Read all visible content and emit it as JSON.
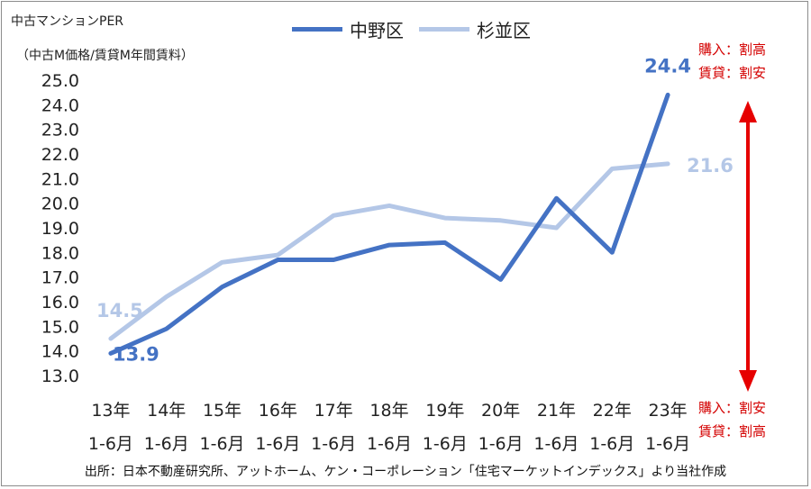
{
  "chart_data": {
    "type": "line",
    "title": "中古マンションPER",
    "subtitle": "（中古M価格/賃貸M年間賃料）",
    "categories": [
      "13年 1-6月",
      "14年 1-6月",
      "15年 1-6月",
      "16年 1-6月",
      "17年 1-6月",
      "18年 1-6月",
      "19年 1-6月",
      "20年 1-6月",
      "21年 1-6月",
      "22年 1-6月",
      "23年 1-6月"
    ],
    "category_lines": [
      [
        "13年",
        "1-6月"
      ],
      [
        "14年",
        "1-6月"
      ],
      [
        "15年",
        "1-6月"
      ],
      [
        "16年",
        "1-6月"
      ],
      [
        "17年",
        "1-6月"
      ],
      [
        "18年",
        "1-6月"
      ],
      [
        "19年",
        "1-6月"
      ],
      [
        "20年",
        "1-6月"
      ],
      [
        "21年",
        "1-6月"
      ],
      [
        "22年",
        "1-6月"
      ],
      [
        "23年",
        "1-6月"
      ]
    ],
    "series": [
      {
        "name": "中野区",
        "color": "#4472c4",
        "values": [
          13.9,
          14.9,
          16.6,
          17.7,
          17.7,
          18.3,
          18.4,
          16.9,
          20.2,
          18.0,
          24.4
        ]
      },
      {
        "name": "杉並区",
        "color": "#b4c7e7",
        "values": [
          14.5,
          16.2,
          17.6,
          17.9,
          19.5,
          19.9,
          19.4,
          19.3,
          19.0,
          21.4,
          21.6
        ]
      }
    ],
    "labels": [
      {
        "series": 0,
        "index": 0,
        "text": "13.9"
      },
      {
        "series": 0,
        "index": 10,
        "text": "24.4"
      },
      {
        "series": 1,
        "index": 0,
        "text": "14.5"
      },
      {
        "series": 1,
        "index": 10,
        "text": "21.6"
      }
    ],
    "ylim": [
      13.0,
      25.0
    ],
    "yticks": [
      "13.0",
      "14.0",
      "15.0",
      "16.0",
      "17.0",
      "18.0",
      "19.0",
      "20.0",
      "21.0",
      "22.0",
      "23.0",
      "24.0",
      "25.0"
    ],
    "grid": false,
    "legend_position": "top"
  },
  "annotations": {
    "top_line1": "購入：割高",
    "top_line2": "賃貸：割安",
    "bottom_line1": "購入：割安",
    "bottom_line2": "賃貸：割高",
    "arrow_color": "#e60000"
  },
  "source": "出所：日本不動産研究所、アットホーム、ケン・コーポレーション「住宅マーケットインデックス」より当社作成"
}
